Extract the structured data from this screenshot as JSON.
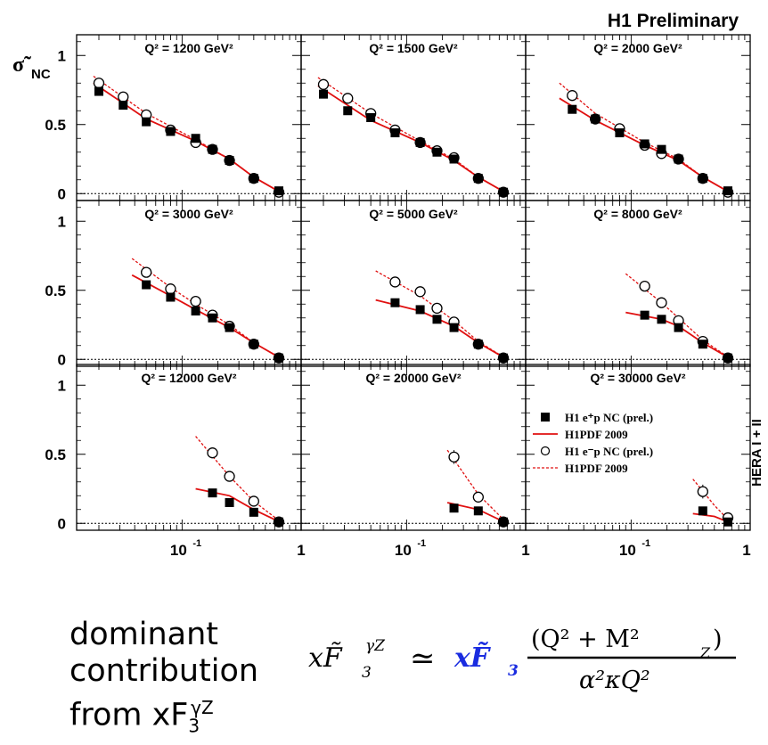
{
  "header": {
    "brand": "H1 Preliminary",
    "side_label": "HERA I + II"
  },
  "axes": {
    "ylabel": "σ̃",
    "ylabel_sub": "NC",
    "ytick_labels": [
      "0",
      "0.5",
      "1"
    ],
    "xtick_labels": [
      "10",
      "1"
    ],
    "xtick_exp": "-1",
    "grid": false
  },
  "legend": {
    "placement": "panel 9, upper-right",
    "items": [
      {
        "label": "H1 e⁺p NC (prel.)",
        "marker": "filled-square"
      },
      {
        "label": "H1PDF 2009",
        "style": "solid"
      },
      {
        "label": "H1 e⁻p NC (prel.)",
        "marker": "open-circle"
      },
      {
        "label": "H1PDF 2009",
        "style": "dotted"
      }
    ]
  },
  "colors": {
    "curve": "#e01010",
    "data": "#000000",
    "baseline": "#000000"
  },
  "chart_data": {
    "type": "scatter",
    "x_scale": "log",
    "xlim": [
      0.013,
      1.0
    ],
    "ylim": [
      -0.05,
      1.15
    ],
    "panels": [
      {
        "q2": "1200",
        "title": "Q² = 1200 GeV²",
        "ep_x": [
          0.02,
          0.032,
          0.05,
          0.08,
          0.13,
          0.18,
          0.25,
          0.4,
          0.65
        ],
        "ep_y": [
          0.74,
          0.64,
          0.52,
          0.45,
          0.4,
          0.32,
          0.24,
          0.11,
          0.02
        ],
        "em_x": [
          0.02,
          0.032,
          0.05,
          0.08,
          0.13,
          0.18,
          0.25,
          0.4,
          0.65
        ],
        "em_y": [
          0.8,
          0.7,
          0.57,
          0.46,
          0.37,
          0.32,
          0.24,
          0.11,
          0.01
        ],
        "fit_pos": [
          [
            0.018,
            0.8
          ],
          [
            0.05,
            0.54
          ],
          [
            0.13,
            0.38
          ],
          [
            0.25,
            0.25
          ],
          [
            0.4,
            0.12
          ],
          [
            0.7,
            0.0
          ]
        ],
        "fit_neg": [
          [
            0.018,
            0.85
          ],
          [
            0.05,
            0.58
          ],
          [
            0.13,
            0.39
          ],
          [
            0.25,
            0.25
          ],
          [
            0.4,
            0.12
          ],
          [
            0.7,
            0.0
          ]
        ]
      },
      {
        "q2": "1500",
        "title": "Q² = 1500 GeV²",
        "ep_x": [
          0.02,
          0.032,
          0.05,
          0.08,
          0.13,
          0.18,
          0.25,
          0.4,
          0.65
        ],
        "ep_y": [
          0.72,
          0.6,
          0.55,
          0.44,
          0.37,
          0.3,
          0.25,
          0.11,
          0.01
        ],
        "em_x": [
          0.02,
          0.032,
          0.05,
          0.08,
          0.13,
          0.18,
          0.25,
          0.4,
          0.65
        ],
        "em_y": [
          0.79,
          0.69,
          0.58,
          0.46,
          0.37,
          0.31,
          0.26,
          0.11,
          0.01
        ],
        "fit_pos": [
          [
            0.018,
            0.78
          ],
          [
            0.05,
            0.53
          ],
          [
            0.13,
            0.37
          ],
          [
            0.25,
            0.24
          ],
          [
            0.4,
            0.12
          ],
          [
            0.7,
            0.0
          ]
        ],
        "fit_neg": [
          [
            0.018,
            0.84
          ],
          [
            0.05,
            0.58
          ],
          [
            0.13,
            0.38
          ],
          [
            0.25,
            0.25
          ],
          [
            0.4,
            0.12
          ],
          [
            0.7,
            0.0
          ]
        ]
      },
      {
        "q2": "2000",
        "title": "Q² = 2000 GeV²",
        "ep_x": [
          0.032,
          0.05,
          0.08,
          0.13,
          0.18,
          0.25,
          0.4,
          0.65
        ],
        "ep_y": [
          0.61,
          0.54,
          0.44,
          0.36,
          0.32,
          0.25,
          0.11,
          0.02
        ],
        "em_x": [
          0.032,
          0.05,
          0.08,
          0.13,
          0.18,
          0.25,
          0.4,
          0.65
        ],
        "em_y": [
          0.71,
          0.54,
          0.47,
          0.35,
          0.29,
          0.25,
          0.11,
          0.01
        ],
        "fit_pos": [
          [
            0.025,
            0.69
          ],
          [
            0.05,
            0.53
          ],
          [
            0.13,
            0.35
          ],
          [
            0.25,
            0.24
          ],
          [
            0.4,
            0.12
          ],
          [
            0.7,
            0.0
          ]
        ],
        "fit_neg": [
          [
            0.025,
            0.8
          ],
          [
            0.05,
            0.58
          ],
          [
            0.13,
            0.37
          ],
          [
            0.25,
            0.25
          ],
          [
            0.4,
            0.12
          ],
          [
            0.7,
            0.0
          ]
        ]
      },
      {
        "q2": "3000",
        "title": "Q² = 3000 GeV²",
        "ep_x": [
          0.05,
          0.08,
          0.13,
          0.18,
          0.25,
          0.4,
          0.65
        ],
        "ep_y": [
          0.54,
          0.45,
          0.35,
          0.3,
          0.23,
          0.11,
          0.01
        ],
        "em_x": [
          0.05,
          0.08,
          0.13,
          0.18,
          0.25,
          0.4,
          0.65
        ],
        "em_y": [
          0.63,
          0.51,
          0.42,
          0.32,
          0.24,
          0.11,
          0.01
        ],
        "fit_pos": [
          [
            0.038,
            0.61
          ],
          [
            0.08,
            0.46
          ],
          [
            0.13,
            0.36
          ],
          [
            0.25,
            0.23
          ],
          [
            0.4,
            0.12
          ],
          [
            0.7,
            0.0
          ]
        ],
        "fit_neg": [
          [
            0.038,
            0.73
          ],
          [
            0.08,
            0.52
          ],
          [
            0.13,
            0.4
          ],
          [
            0.25,
            0.25
          ],
          [
            0.4,
            0.12
          ],
          [
            0.7,
            0.0
          ]
        ]
      },
      {
        "q2": "5000",
        "title": "Q² = 5000 GeV²",
        "ep_x": [
          0.08,
          0.13,
          0.18,
          0.25,
          0.4,
          0.65
        ],
        "ep_y": [
          0.41,
          0.36,
          0.29,
          0.23,
          0.11,
          0.01
        ],
        "em_x": [
          0.08,
          0.13,
          0.18,
          0.25,
          0.4,
          0.65
        ],
        "em_y": [
          0.56,
          0.49,
          0.37,
          0.27,
          0.11,
          0.01
        ],
        "fit_pos": [
          [
            0.055,
            0.43
          ],
          [
            0.13,
            0.35
          ],
          [
            0.25,
            0.24
          ],
          [
            0.4,
            0.12
          ],
          [
            0.7,
            0.0
          ]
        ],
        "fit_neg": [
          [
            0.055,
            0.64
          ],
          [
            0.13,
            0.46
          ],
          [
            0.25,
            0.28
          ],
          [
            0.4,
            0.13
          ],
          [
            0.7,
            0.0
          ]
        ]
      },
      {
        "q2": "8000",
        "title": "Q² = 8000 GeV²",
        "ep_x": [
          0.13,
          0.18,
          0.25,
          0.4,
          0.65
        ],
        "ep_y": [
          0.32,
          0.29,
          0.23,
          0.11,
          0.01
        ],
        "em_x": [
          0.13,
          0.18,
          0.25,
          0.4,
          0.65
        ],
        "em_y": [
          0.53,
          0.41,
          0.28,
          0.13,
          0.01
        ],
        "fit_pos": [
          [
            0.09,
            0.34
          ],
          [
            0.18,
            0.29
          ],
          [
            0.25,
            0.24
          ],
          [
            0.4,
            0.12
          ],
          [
            0.7,
            0.0
          ]
        ],
        "fit_neg": [
          [
            0.09,
            0.62
          ],
          [
            0.18,
            0.41
          ],
          [
            0.25,
            0.3
          ],
          [
            0.4,
            0.14
          ],
          [
            0.7,
            0.0
          ]
        ]
      },
      {
        "q2": "12000",
        "title": "Q² = 12000 GeV²",
        "ep_x": [
          0.18,
          0.25,
          0.4,
          0.65
        ],
        "ep_y": [
          0.22,
          0.15,
          0.08,
          0.01
        ],
        "em_x": [
          0.18,
          0.25,
          0.4,
          0.65
        ],
        "em_y": [
          0.51,
          0.34,
          0.16,
          0.01
        ],
        "fit_pos": [
          [
            0.13,
            0.25
          ],
          [
            0.25,
            0.2
          ],
          [
            0.4,
            0.1
          ],
          [
            0.7,
            0.0
          ]
        ],
        "fit_neg": [
          [
            0.13,
            0.63
          ],
          [
            0.25,
            0.34
          ],
          [
            0.4,
            0.16
          ],
          [
            0.7,
            0.0
          ]
        ]
      },
      {
        "q2": "20000",
        "title": "Q² = 20000 GeV²",
        "ep_x": [
          0.25,
          0.4,
          0.65
        ],
        "ep_y": [
          0.11,
          0.09,
          0.01
        ],
        "em_x": [
          0.25,
          0.4,
          0.65
        ],
        "em_y": [
          0.48,
          0.19,
          0.01
        ],
        "em_err": [
          0.05,
          0.02,
          0.01
        ],
        "fit_pos": [
          [
            0.22,
            0.15
          ],
          [
            0.4,
            0.1
          ],
          [
            0.7,
            0.0
          ]
        ],
        "fit_neg": [
          [
            0.22,
            0.53
          ],
          [
            0.4,
            0.21
          ],
          [
            0.7,
            0.0
          ]
        ]
      },
      {
        "q2": "30000",
        "title": "Q² = 30000 GeV²",
        "ep_x": [
          0.4,
          0.65
        ],
        "ep_y": [
          0.09,
          0.01
        ],
        "em_x": [
          0.4,
          0.65
        ],
        "em_y": [
          0.23,
          0.04
        ],
        "em_err": [
          0.05,
          0.02
        ],
        "fit_pos": [
          [
            0.33,
            0.07
          ],
          [
            0.5,
            0.05
          ],
          [
            0.7,
            0.0
          ]
        ],
        "fit_neg": [
          [
            0.33,
            0.32
          ],
          [
            0.5,
            0.13
          ],
          [
            0.7,
            0.0
          ]
        ]
      }
    ]
  },
  "caption": {
    "line1": "dominant",
    "line2": "contribution",
    "line3_prefix": "from xF",
    "sub": "3",
    "sup": "γZ"
  },
  "formula": {
    "lhs": "xF̃",
    "lhs_sup": "γZ",
    "lhs_sub": "3",
    "approx": "≃",
    "rhs_blue": "xF̃",
    "rhs_blue_sub": "3",
    "numerator": "(Q² + M²",
    "numerator_sub": "Z",
    "numerator_close": ")",
    "denominator": "α²κQ²"
  }
}
